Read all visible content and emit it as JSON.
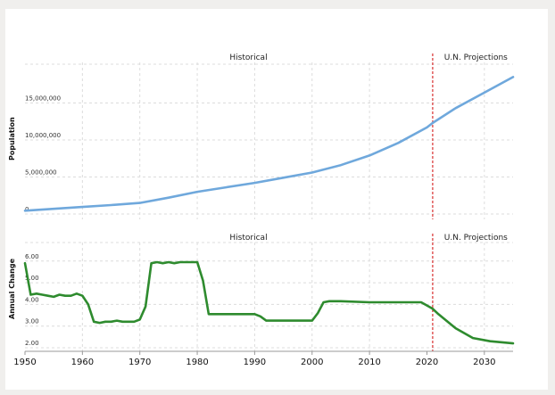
{
  "colors": {
    "background": "#f0efed",
    "panel": "#ffffff",
    "population_line": "#6fa8dc",
    "change_line": "#2e8b2e",
    "projection_divider": "#d93030",
    "grid": "#dcdcdc"
  },
  "chart_data": [
    {
      "type": "line",
      "title": "",
      "region_labels": [
        "Historical",
        "U.N. Projections"
      ],
      "ylabel": "Population",
      "xlabel": "",
      "xlim": [
        1950,
        2035
      ],
      "ylim": [
        0,
        20000000
      ],
      "y_ticks": [
        0,
        5000000,
        10000000,
        15000000
      ],
      "y_tick_labels": [
        "0",
        "5,000,000",
        "10,000,000",
        "15,000,000"
      ],
      "projection_start": 2021,
      "grid": true,
      "series": [
        {
          "x": [
            1950,
            1955,
            1960,
            1965,
            1970,
            1975,
            1980,
            1985,
            1990,
            1995,
            2000,
            2005,
            2010,
            2015,
            2020,
            2021,
            2025,
            2030,
            2035
          ],
          "values": [
            450000,
            700000,
            950000,
            1200000,
            1500000,
            2200000,
            3000000,
            3600000,
            4200000,
            4900000,
            5600000,
            6600000,
            7900000,
            9600000,
            11700000,
            12300000,
            14300000,
            16400000,
            18500000
          ]
        }
      ]
    },
    {
      "type": "line",
      "title": "",
      "region_labels": [
        "Historical",
        "U.N. Projections"
      ],
      "ylabel": "Annual Change",
      "xlabel": "",
      "xlim": [
        1950,
        2035
      ],
      "ylim": [
        1.8,
        7.0
      ],
      "y_ticks": [
        2.0,
        3.0,
        4.0,
        5.0,
        6.0
      ],
      "y_tick_labels": [
        "2.00",
        "3.00",
        "4.00",
        "5.00",
        "6.00"
      ],
      "x_ticks": [
        1950,
        1960,
        1970,
        1980,
        1990,
        2000,
        2010,
        2020,
        2030
      ],
      "x_tick_labels": [
        "1950",
        "1960",
        "1970",
        "1980",
        "1990",
        "2000",
        "2010",
        "2020",
        "2030"
      ],
      "projection_start": 2021,
      "grid": true,
      "series": [
        {
          "x": [
            1950,
            1951,
            1952,
            1953,
            1954,
            1955,
            1956,
            1957,
            1958,
            1959,
            1960,
            1961,
            1962,
            1963,
            1964,
            1965,
            1966,
            1967,
            1968,
            1969,
            1970,
            1971,
            1972,
            1973,
            1974,
            1975,
            1976,
            1977,
            1978,
            1979,
            1980,
            1981,
            1982,
            1985,
            1990,
            1991,
            1992,
            1993,
            1995,
            2000,
            2001,
            2002,
            2003,
            2005,
            2010,
            2015,
            2019,
            2020,
            2021,
            2022,
            2025,
            2028,
            2031,
            2035
          ],
          "values": [
            5.9,
            4.45,
            4.5,
            4.45,
            4.4,
            4.35,
            4.45,
            4.4,
            4.4,
            4.5,
            4.4,
            4.0,
            3.2,
            3.15,
            3.2,
            3.2,
            3.25,
            3.2,
            3.2,
            3.2,
            3.3,
            3.9,
            5.9,
            5.95,
            5.9,
            5.95,
            5.9,
            5.95,
            5.95,
            5.95,
            5.95,
            5.1,
            3.55,
            3.55,
            3.55,
            3.45,
            3.25,
            3.25,
            3.25,
            3.25,
            3.6,
            4.1,
            4.15,
            4.15,
            4.1,
            4.1,
            4.1,
            3.95,
            3.8,
            3.55,
            2.9,
            2.45,
            2.3,
            2.2
          ]
        }
      ]
    }
  ]
}
